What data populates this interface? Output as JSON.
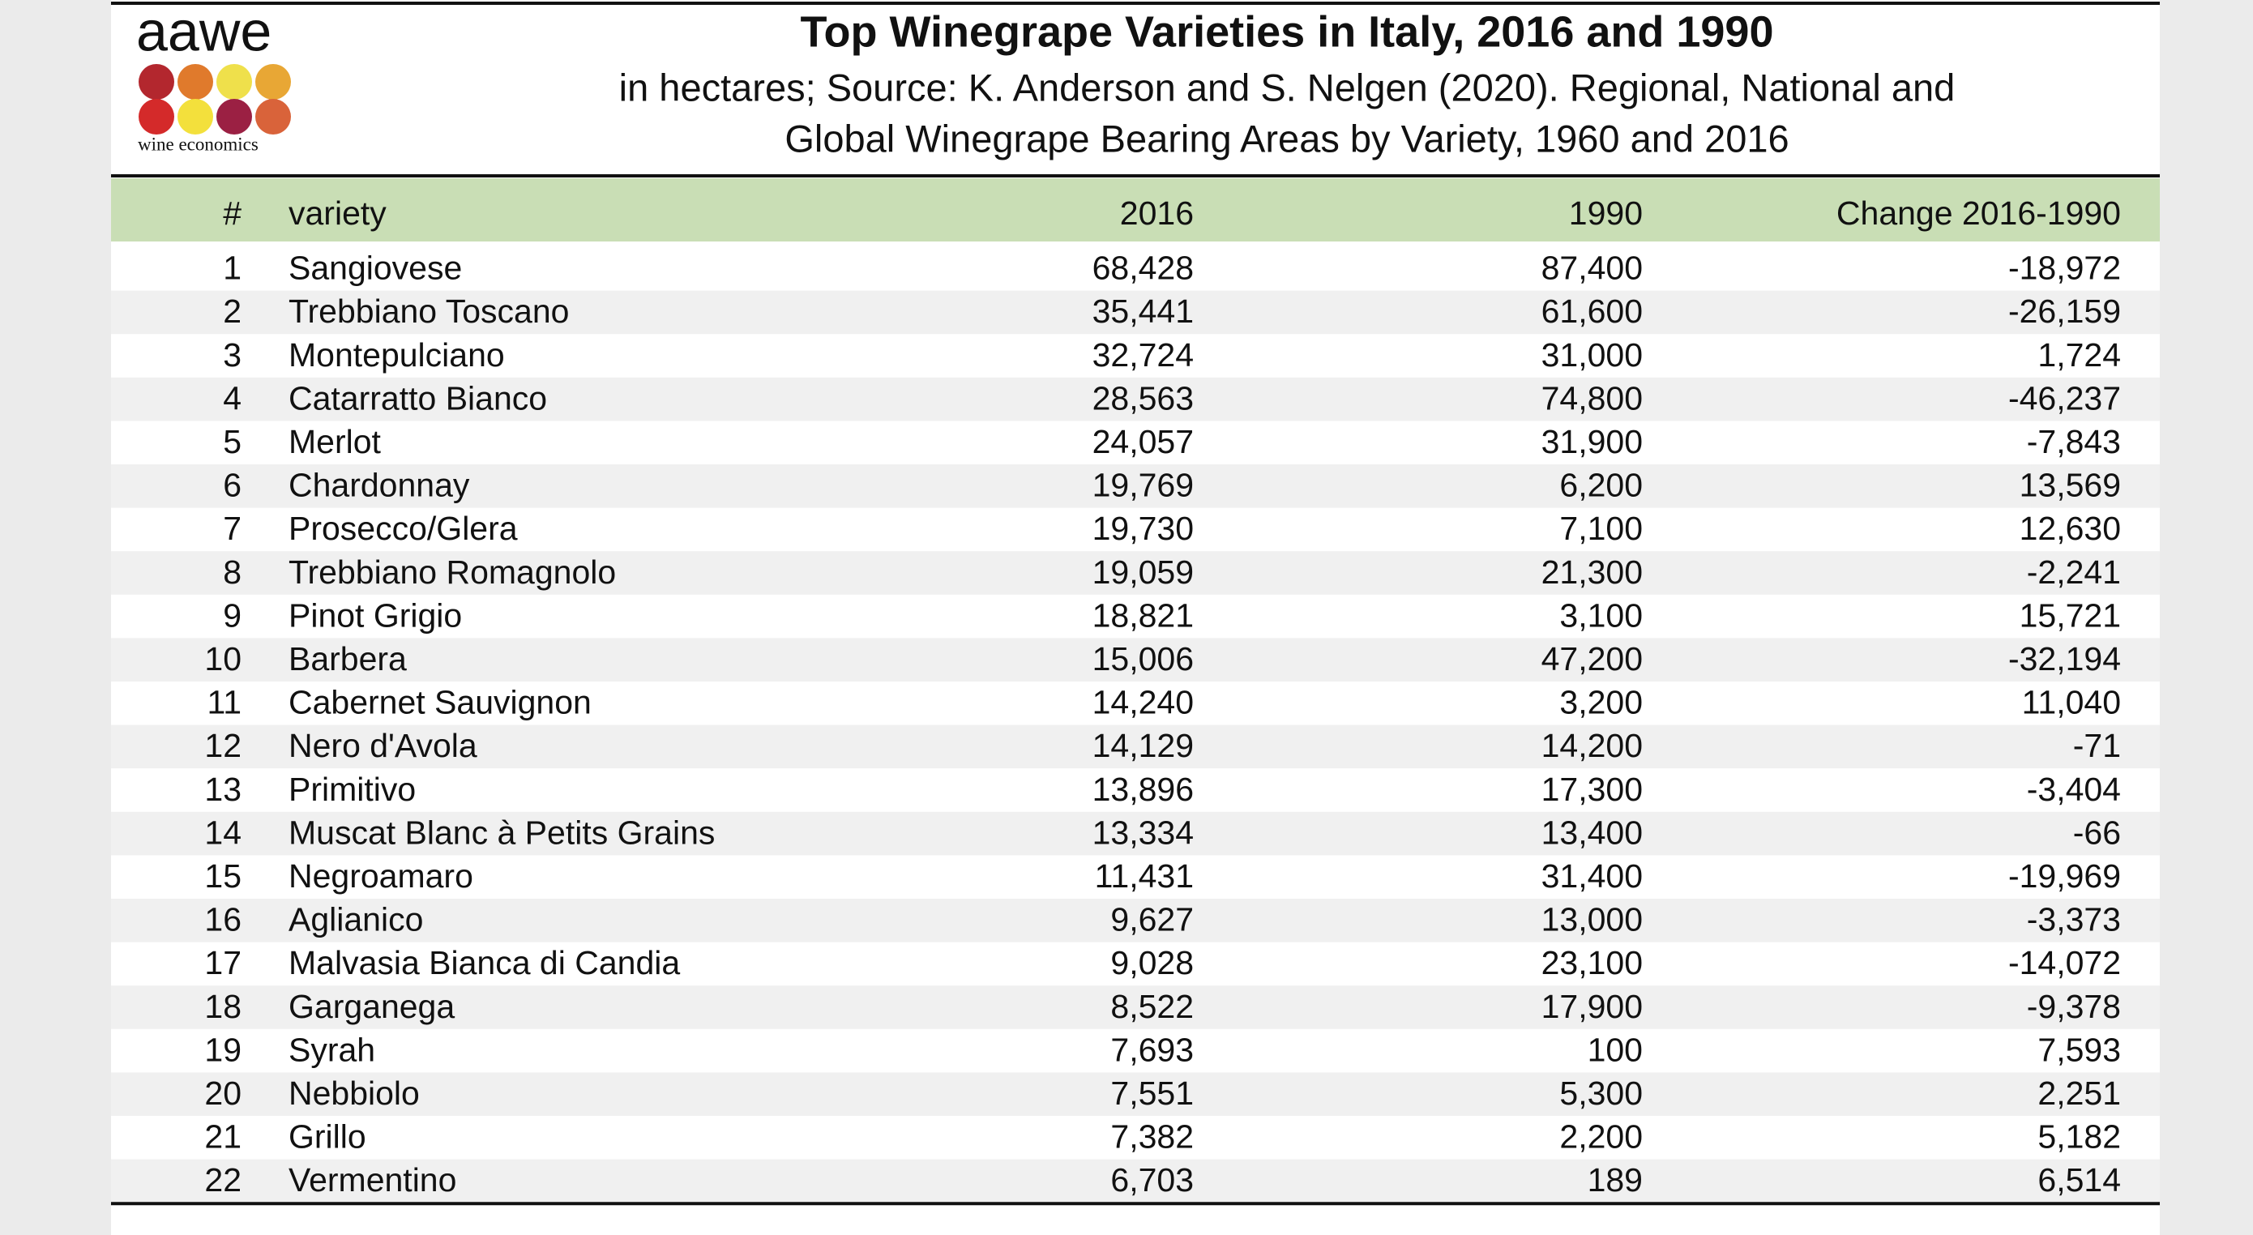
{
  "header": {
    "logo": "aawe",
    "logo_tagline": "wine economics",
    "title": "Top Winegrape Varieties in Italy, 2016 and 1990",
    "subtitle": [
      "in hectares; Source: K. Anderson and S. Nelgen (2020). Regional, National and",
      "Global Winegrape Bearing Areas by Variety, 1960 and 2016"
    ]
  },
  "table": {
    "columns": [
      "#",
      "variety",
      "2016",
      "1990",
      "Change 2016-1990"
    ],
    "rows": [
      [
        "1",
        "Sangiovese",
        "68,428",
        "87,400",
        "-18,972"
      ],
      [
        "2",
        "Trebbiano Toscano",
        "35,441",
        "61,600",
        "-26,159"
      ],
      [
        "3",
        "Montepulciano",
        "32,724",
        "31,000",
        "1,724"
      ],
      [
        "4",
        "Catarratto Bianco",
        "28,563",
        "74,800",
        "-46,237"
      ],
      [
        "5",
        "Merlot",
        "24,057",
        "31,900",
        "-7,843"
      ],
      [
        "6",
        "Chardonnay",
        "19,769",
        "6,200",
        "13,569"
      ],
      [
        "7",
        "Prosecco/Glera",
        "19,730",
        "7,100",
        "12,630"
      ],
      [
        "8",
        "Trebbiano Romagnolo",
        "19,059",
        "21,300",
        "-2,241"
      ],
      [
        "9",
        "Pinot Grigio",
        "18,821",
        "3,100",
        "15,721"
      ],
      [
        "10",
        "Barbera",
        "15,006",
        "47,200",
        "-32,194"
      ],
      [
        "11",
        "Cabernet Sauvignon",
        "14,240",
        "3,200",
        "11,040"
      ],
      [
        "12",
        "Nero d'Avola",
        "14,129",
        "14,200",
        "-71"
      ],
      [
        "13",
        "Primitivo",
        "13,896",
        "17,300",
        "-3,404"
      ],
      [
        "14",
        "Muscat Blanc à Petits Grains",
        "13,334",
        "13,400",
        "-66"
      ],
      [
        "15",
        "Negroamaro",
        "11,431",
        "31,400",
        "-19,969"
      ],
      [
        "16",
        "Aglianico",
        "9,627",
        "13,000",
        "-3,373"
      ],
      [
        "17",
        "Malvasia Bianca di Candia",
        "9,028",
        "23,100",
        "-14,072"
      ],
      [
        "18",
        "Garganega",
        "8,522",
        "17,900",
        "-9,378"
      ],
      [
        "19",
        "Syrah",
        "7,693",
        "100",
        "7,593"
      ],
      [
        "20",
        "Nebbiolo",
        "7,551",
        "5,300",
        "2,251"
      ],
      [
        "21",
        "Grillo",
        "7,382",
        "2,200",
        "5,182"
      ],
      [
        "22",
        "Vermentino",
        "6,703",
        "189",
        "6,514"
      ]
    ]
  }
}
